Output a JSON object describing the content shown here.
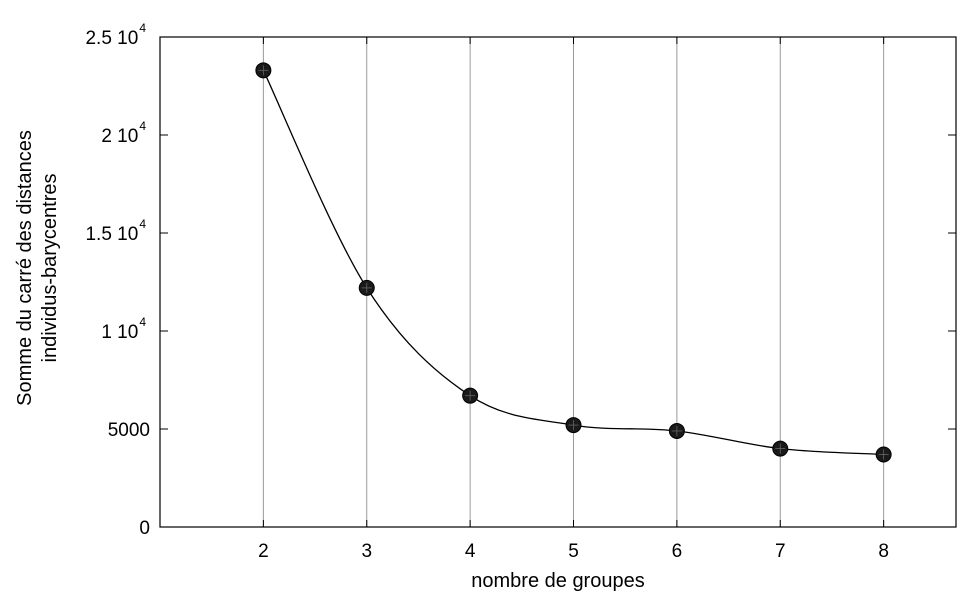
{
  "chart_data": {
    "type": "line",
    "title": "",
    "xlabel": "nombre de groupes",
    "ylabel_lines": [
      "Somme du carré des distances",
      "individus-barycentres"
    ],
    "xlim": [
      1,
      8.7
    ],
    "ylim": [
      0,
      25000
    ],
    "grid": {
      "vertical": true,
      "horizontal": false
    },
    "x_ticks": [
      {
        "value": 2,
        "label": "2"
      },
      {
        "value": 3,
        "label": "3"
      },
      {
        "value": 4,
        "label": "4"
      },
      {
        "value": 5,
        "label": "5"
      },
      {
        "value": 6,
        "label": "6"
      },
      {
        "value": 7,
        "label": "7"
      },
      {
        "value": 8,
        "label": "8"
      }
    ],
    "y_ticks": [
      {
        "value": 0,
        "mantissa": "0",
        "exponent": ""
      },
      {
        "value": 5000,
        "mantissa": "5000",
        "exponent": ""
      },
      {
        "value": 10000,
        "mantissa": "1 10",
        "exponent": "4"
      },
      {
        "value": 15000,
        "mantissa": "1.5 10",
        "exponent": "4"
      },
      {
        "value": 20000,
        "mantissa": "2 10",
        "exponent": "4"
      },
      {
        "value": 25000,
        "mantissa": "2.5 10",
        "exponent": "4"
      }
    ],
    "series": [
      {
        "x": [
          2,
          3,
          4,
          5,
          6,
          7,
          8
        ],
        "y": [
          23300,
          12200,
          6700,
          5200,
          4900,
          4000,
          3700
        ]
      }
    ],
    "colors": {
      "line": "#000000",
      "marker": "#1a1a1a",
      "grid": "#9a9a9a",
      "frame": "#000000"
    }
  }
}
